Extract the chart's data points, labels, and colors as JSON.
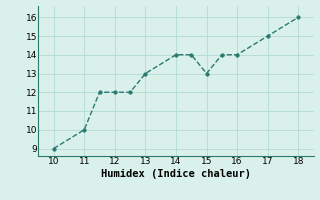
{
  "x": [
    10,
    11,
    11.5,
    12,
    12.5,
    13,
    14,
    14.5,
    15,
    15.5,
    16,
    17,
    18
  ],
  "y": [
    9,
    10,
    12,
    12,
    12,
    13,
    14,
    14,
    13,
    14,
    14,
    15,
    16
  ],
  "line_color": "#2a7a6e",
  "marker_color": "#2a7a6e",
  "bg_color": "#daf0eb",
  "grid_color": "#b8ddd8",
  "xlabel": "Humidex (Indice chaleur)",
  "xlim": [
    9.5,
    18.5
  ],
  "ylim": [
    8.6,
    16.6
  ],
  "xticks": [
    10,
    11,
    12,
    13,
    14,
    15,
    16,
    17,
    18
  ],
  "yticks": [
    9,
    10,
    11,
    12,
    13,
    14,
    15,
    16
  ],
  "xlabel_fontsize": 7.5,
  "tick_fontsize": 6.5,
  "line_width": 1.0,
  "marker_size": 2.5
}
